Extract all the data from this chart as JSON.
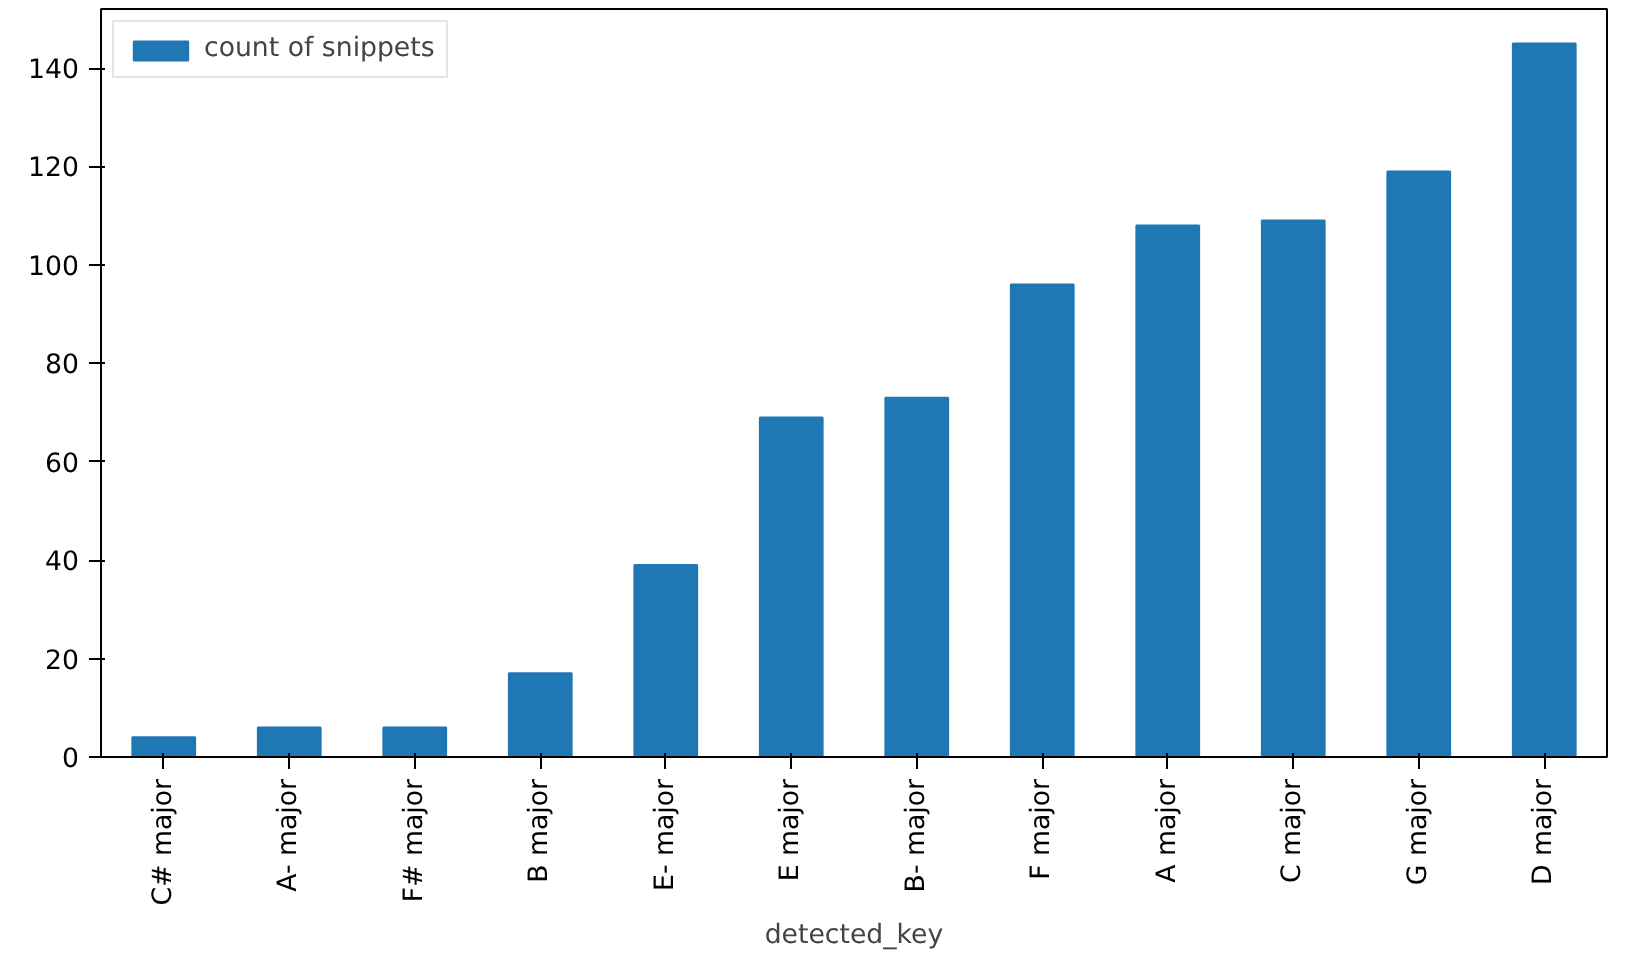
{
  "chart_data": {
    "type": "bar",
    "xlabel": "detected_key",
    "categories": [
      "C# major",
      "A- major",
      "F# major",
      "B major",
      "E- major",
      "E major",
      "B- major",
      "F major",
      "A major",
      "C major",
      "G major",
      "D major"
    ],
    "series": [
      {
        "name": "count of snippets",
        "color": "#1f77b4",
        "values": [
          4,
          6,
          6,
          17,
          39,
          69,
          73,
          96,
          108,
          109,
          119,
          145
        ]
      }
    ],
    "ylim": [
      0,
      152
    ],
    "yticks": [
      0,
      20,
      40,
      60,
      80,
      100,
      120,
      140
    ],
    "grid": false,
    "legend": "top left"
  }
}
